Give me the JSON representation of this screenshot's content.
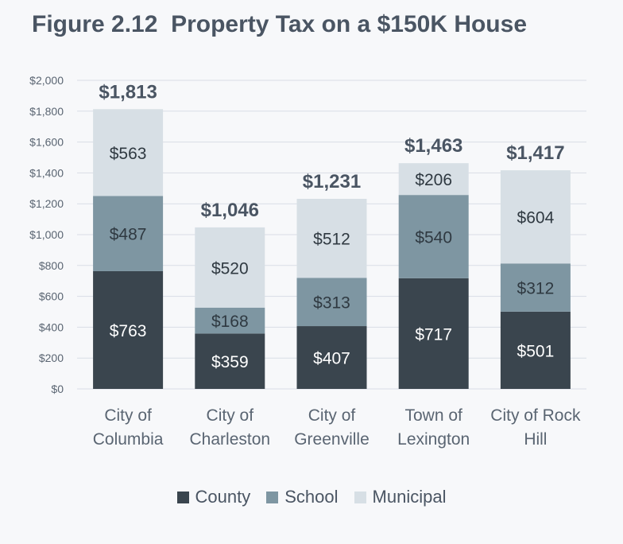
{
  "title": "Figure 2.12  Property Tax on a $150K House",
  "colors": {
    "County": "#3a454e",
    "School": "#7e96a2",
    "Municipal": "#d7dfe5",
    "grid": "#d9dde6",
    "axis_text": "#5a6572",
    "total_text": "#4a5563"
  },
  "chart_data": {
    "type": "bar",
    "stacked": true,
    "title": "Figure 2.12  Property Tax on a $150K House",
    "categories": [
      [
        "City of",
        "Columbia"
      ],
      [
        "City of",
        "Charleston"
      ],
      [
        "City of",
        "Greenville"
      ],
      [
        "Town of",
        "Lexington"
      ],
      [
        "City of Rock",
        "Hill"
      ]
    ],
    "series": [
      {
        "name": "County",
        "values": [
          763,
          359,
          407,
          717,
          501
        ],
        "labels": [
          "$763",
          "$359",
          "$407",
          "$717",
          "$501"
        ]
      },
      {
        "name": "School",
        "values": [
          487,
          168,
          313,
          540,
          312
        ],
        "labels": [
          "$487",
          "$168",
          "$313",
          "$540",
          "$312"
        ]
      },
      {
        "name": "Municipal",
        "values": [
          563,
          520,
          512,
          206,
          604
        ],
        "labels": [
          "$563",
          "$520",
          "$512",
          "$206",
          "$604"
        ]
      }
    ],
    "totals": [
      "$1,813",
      "$1,046",
      "$1,231",
      "$1,463",
      "$1,417"
    ],
    "ylim": [
      0,
      2000
    ],
    "yticks": [
      0,
      200,
      400,
      600,
      800,
      1000,
      1200,
      1400,
      1600,
      1800,
      2000
    ],
    "ytick_labels": [
      "$0",
      "$200",
      "$400",
      "$600",
      "$800",
      "$1,000",
      "$1,200",
      "$1,400",
      "$1,600",
      "$1,800",
      "$2,000"
    ],
    "grid": true,
    "legend_position": "bottom"
  },
  "legend": [
    {
      "name": "County"
    },
    {
      "name": "School"
    },
    {
      "name": "Municipal"
    }
  ]
}
